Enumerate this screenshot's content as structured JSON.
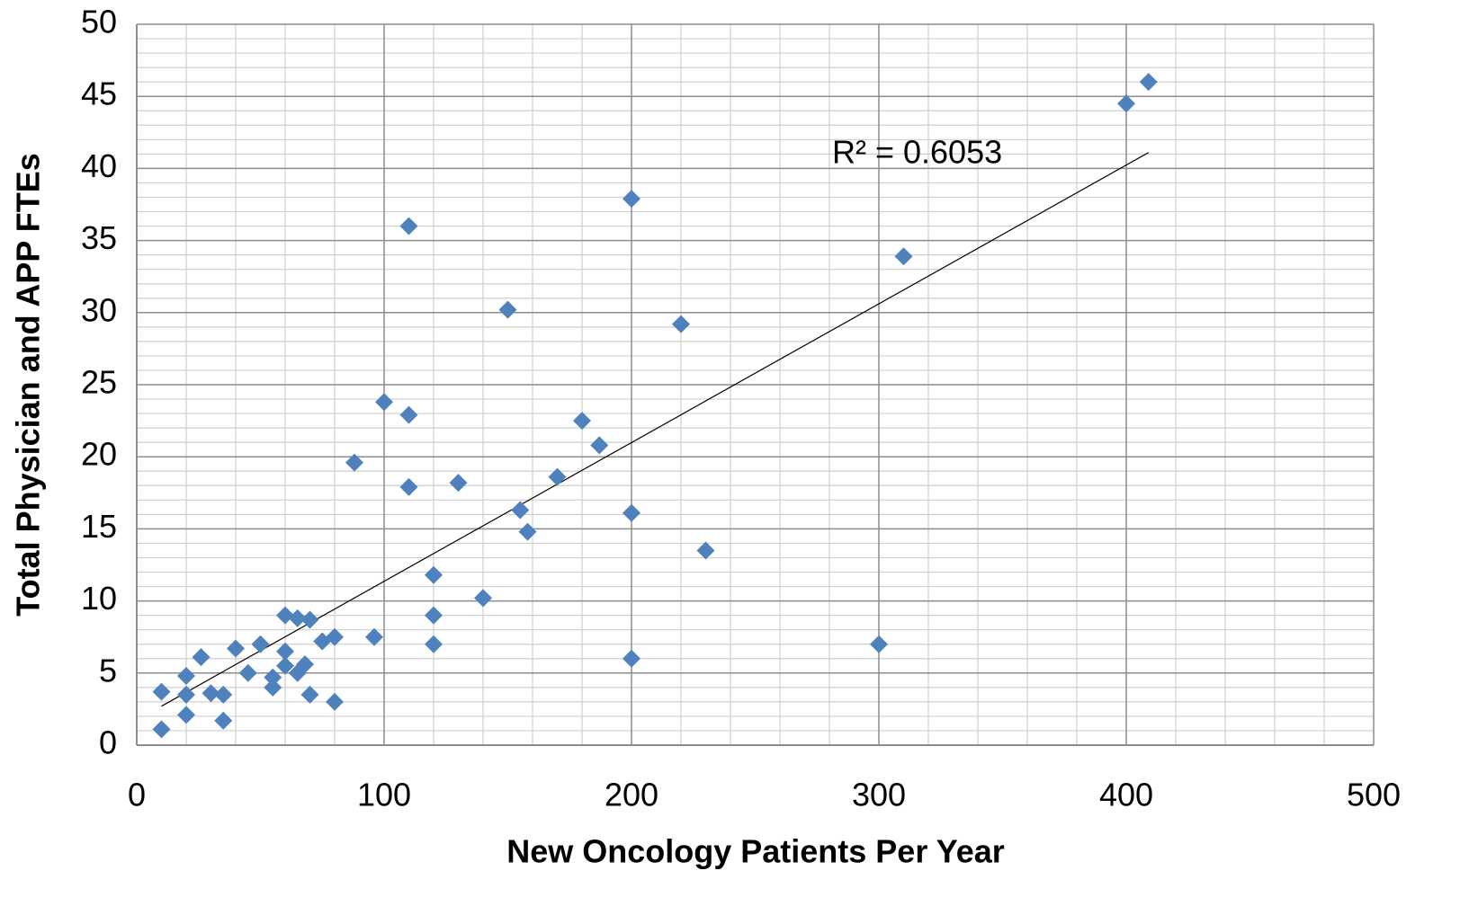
{
  "chart_data": {
    "type": "scatter",
    "x_label": "New Oncology Patients Per Year",
    "y_label": "Total Physician and APP FTEs",
    "annotation": "R² = 0.6053",
    "xlim": [
      0,
      500
    ],
    "ylim": [
      0,
      50
    ],
    "xticks": [
      0,
      100,
      200,
      300,
      400,
      500
    ],
    "yticks": [
      0,
      5,
      10,
      15,
      20,
      25,
      30,
      35,
      40,
      45,
      50
    ],
    "minor_xgrid": [
      20,
      40,
      60,
      80,
      120,
      140,
      160,
      180,
      220,
      240,
      260,
      280,
      320,
      340,
      360,
      380,
      420,
      440,
      460,
      480
    ],
    "minor_ygrid": [
      1,
      2,
      3,
      4,
      6,
      7,
      8,
      9,
      11,
      12,
      13,
      14,
      16,
      17,
      18,
      19,
      21,
      22,
      23,
      24,
      26,
      27,
      28,
      29,
      31,
      32,
      33,
      34,
      36,
      37,
      38,
      39,
      41,
      42,
      43,
      44,
      46,
      47,
      48,
      49
    ],
    "grid": true,
    "color": "#4f81bd",
    "x": [
      10,
      10,
      20,
      20,
      20,
      26,
      30,
      35,
      35,
      40,
      45,
      50,
      55,
      55,
      60,
      60,
      60,
      65,
      65,
      68,
      70,
      70,
      75,
      80,
      80,
      88,
      96,
      100,
      110,
      110,
      110,
      120,
      120,
      120,
      130,
      140,
      150,
      155,
      158,
      170,
      180,
      187,
      200,
      200,
      200,
      220,
      230,
      300,
      310,
      400,
      409
    ],
    "y": [
      3.7,
      1.1,
      4.8,
      3.5,
      2.1,
      6.1,
      3.6,
      3.5,
      1.7,
      6.7,
      5.0,
      7.0,
      4.7,
      4.0,
      9.0,
      6.5,
      5.5,
      8.8,
      5.0,
      5.6,
      8.7,
      3.5,
      7.2,
      7.5,
      3.0,
      19.6,
      7.5,
      23.8,
      36.0,
      22.9,
      17.9,
      11.8,
      9.0,
      7.0,
      18.2,
      10.2,
      30.2,
      16.3,
      14.8,
      18.6,
      22.5,
      20.8,
      37.9,
      16.1,
      6.0,
      29.2,
      13.5,
      7.0,
      33.9,
      44.5,
      46.0
    ],
    "trendline": {
      "x": [
        10,
        409
      ],
      "y": [
        2.7,
        41.1
      ],
      "color": "#000000"
    }
  }
}
